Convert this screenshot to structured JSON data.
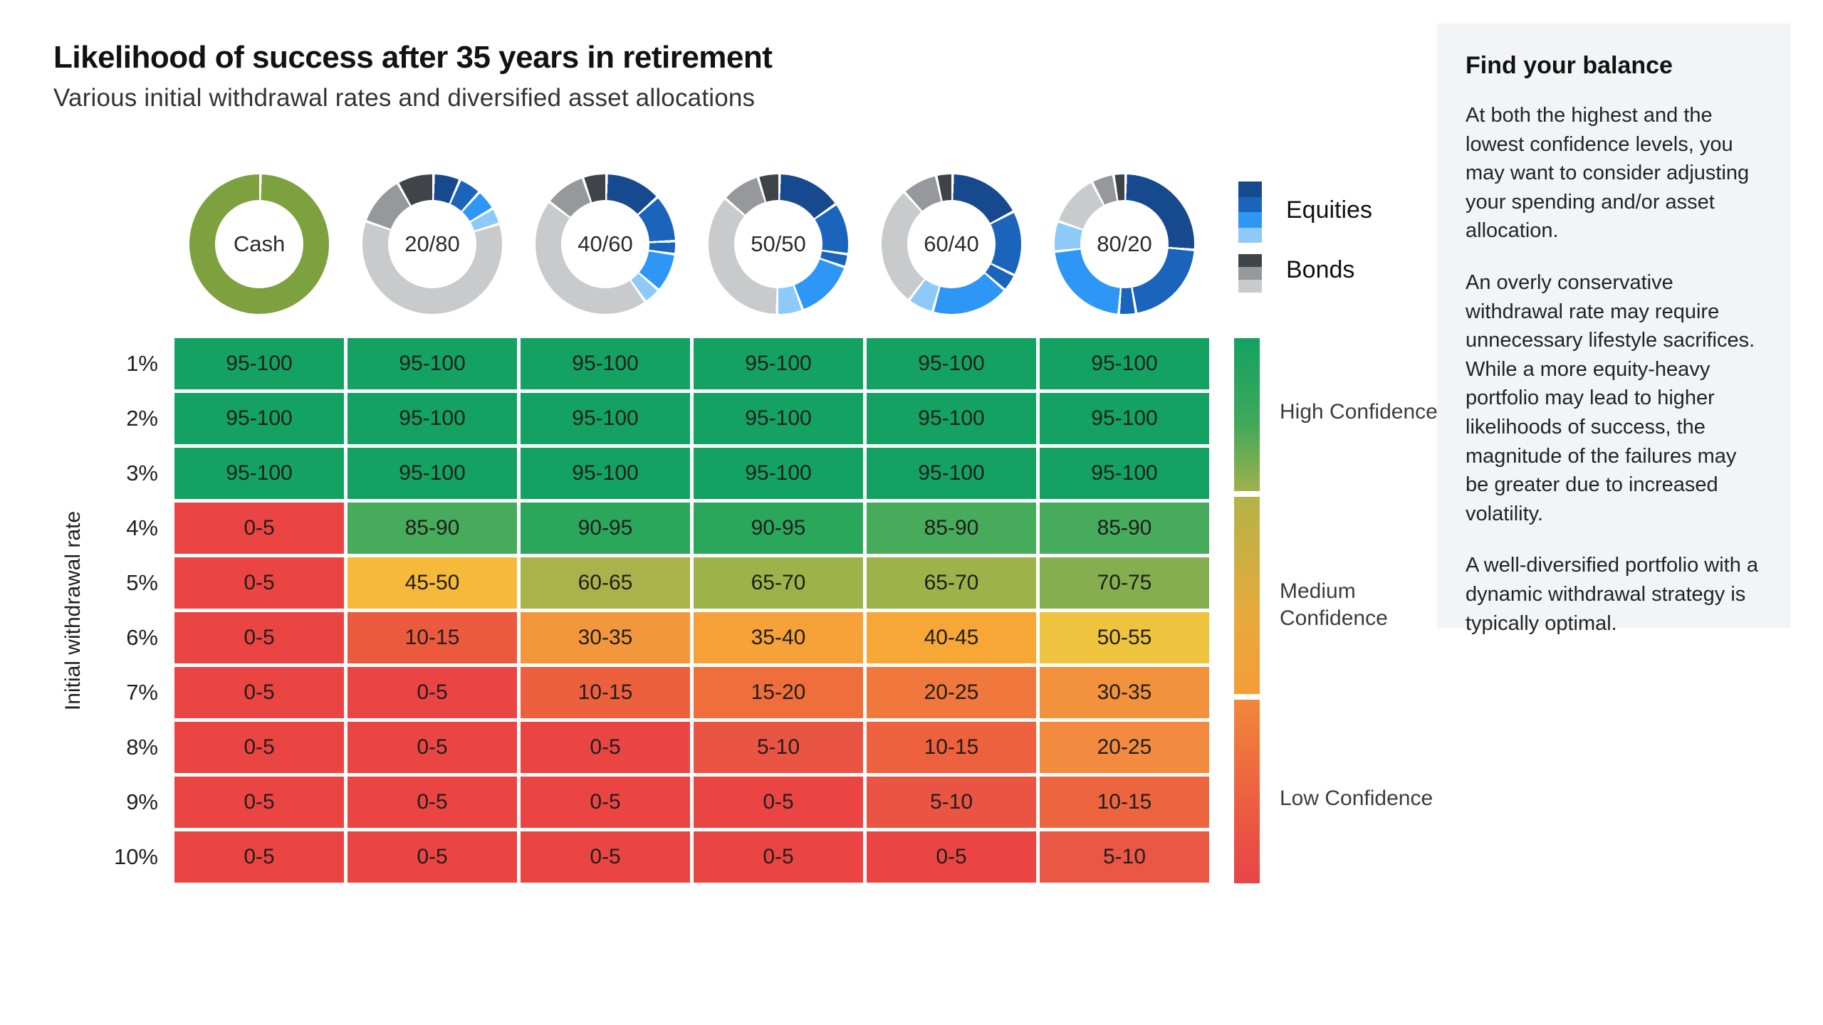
{
  "header": {
    "title": "Likelihood of success after 35 years in retirement",
    "subtitle": "Various initial withdrawal rates and diversified asset allocations"
  },
  "legend": {
    "equities_label": "Equities",
    "bonds_label": "Bonds",
    "equity_colors": [
      "#17498F",
      "#1B64BB",
      "#2E96F5",
      "#8DC9F9"
    ],
    "bond_colors": [
      "#404348",
      "#96989B",
      "#C9CACC"
    ]
  },
  "donuts": [
    {
      "label": "Cash",
      "segments": [
        {
          "color": "#7CA13E",
          "value": 1.0
        }
      ]
    },
    {
      "label": "20/80",
      "segments": [
        {
          "color": "#17498F",
          "value": 0.062
        },
        {
          "color": "#1B64BB",
          "value": 0.052
        },
        {
          "color": "#2E96F5",
          "value": 0.048
        },
        {
          "color": "#8DC9F9",
          "value": 0.038
        },
        {
          "color": "#C9CACC",
          "value": 0.6
        },
        {
          "color": "#96989B",
          "value": 0.115
        },
        {
          "color": "#404348",
          "value": 0.085
        }
      ]
    },
    {
      "label": "40/60",
      "segments": [
        {
          "color": "#17498F",
          "value": 0.13
        },
        {
          "color": "#1B64BB",
          "value": 0.11
        },
        {
          "color": "#1B64BB",
          "value": 0.03
        },
        {
          "color": "#2E96F5",
          "value": 0.09
        },
        {
          "color": "#8DC9F9",
          "value": 0.04
        },
        {
          "color": "#C9CACC",
          "value": 0.45
        },
        {
          "color": "#96989B",
          "value": 0.095
        },
        {
          "color": "#404348",
          "value": 0.055
        }
      ]
    },
    {
      "label": "50/50",
      "segments": [
        {
          "color": "#17498F",
          "value": 0.15
        },
        {
          "color": "#1B64BB",
          "value": 0.12
        },
        {
          "color": "#1B64BB",
          "value": 0.03
        },
        {
          "color": "#2E96F5",
          "value": 0.14
        },
        {
          "color": "#8DC9F9",
          "value": 0.06
        },
        {
          "color": "#C9CACC",
          "value": 0.36
        },
        {
          "color": "#96989B",
          "value": 0.09
        },
        {
          "color": "#404348",
          "value": 0.05
        }
      ]
    },
    {
      "label": "60/40",
      "segments": [
        {
          "color": "#17498F",
          "value": 0.17
        },
        {
          "color": "#1B64BB",
          "value": 0.15
        },
        {
          "color": "#1B64BB",
          "value": 0.04
        },
        {
          "color": "#2E96F5",
          "value": 0.18
        },
        {
          "color": "#8DC9F9",
          "value": 0.06
        },
        {
          "color": "#C9CACC",
          "value": 0.28
        },
        {
          "color": "#96989B",
          "value": 0.082
        },
        {
          "color": "#404348",
          "value": 0.038
        }
      ]
    },
    {
      "label": "80/20",
      "segments": [
        {
          "color": "#17498F",
          "value": 0.26
        },
        {
          "color": "#1B64BB",
          "value": 0.21
        },
        {
          "color": "#1B64BB",
          "value": 0.04
        },
        {
          "color": "#2E96F5",
          "value": 0.22
        },
        {
          "color": "#8DC9F9",
          "value": 0.07
        },
        {
          "color": "#C9CACC",
          "value": 0.12
        },
        {
          "color": "#96989B",
          "value": 0.052
        },
        {
          "color": "#404348",
          "value": 0.028
        }
      ]
    }
  ],
  "confidence": [
    {
      "label": "High Confidence"
    },
    {
      "label": "Medium Confidence"
    },
    {
      "label": "Low Confidence"
    }
  ],
  "chart_data": {
    "type": "heatmap",
    "title": "Likelihood of success after 35 years in retirement",
    "subtitle": "Various initial withdrawal rates and diversified asset allocations",
    "columns": [
      "Cash",
      "20/80",
      "40/60",
      "50/50",
      "60/40",
      "80/20"
    ],
    "ylabel": "Initial withdrawal rate",
    "legend_entries": [
      "Equities",
      "Bonds"
    ],
    "confidence_scale": [
      "High Confidence",
      "Medium Confidence",
      "Low Confidence"
    ],
    "donut_allocations": [
      {
        "label": "Cash",
        "equities_pct": 0,
        "bonds_pct": 0,
        "cash_pct": 100
      },
      {
        "label": "20/80",
        "equities_pct": 20,
        "bonds_pct": 80
      },
      {
        "label": "40/60",
        "equities_pct": 40,
        "bonds_pct": 60
      },
      {
        "label": "50/50",
        "equities_pct": 50,
        "bonds_pct": 50
      },
      {
        "label": "60/40",
        "equities_pct": 60,
        "bonds_pct": 40
      },
      {
        "label": "80/20",
        "equities_pct": 80,
        "bonds_pct": 20
      }
    ],
    "rows": [
      {
        "label": "1%",
        "cells": [
          {
            "value": "95-100",
            "color": "#13A261"
          },
          {
            "value": "95-100",
            "color": "#13A261"
          },
          {
            "value": "95-100",
            "color": "#13A261"
          },
          {
            "value": "95-100",
            "color": "#13A261"
          },
          {
            "value": "95-100",
            "color": "#13A261"
          },
          {
            "value": "95-100",
            "color": "#13A261"
          }
        ]
      },
      {
        "label": "2%",
        "cells": [
          {
            "value": "95-100",
            "color": "#13A261"
          },
          {
            "value": "95-100",
            "color": "#13A261"
          },
          {
            "value": "95-100",
            "color": "#13A261"
          },
          {
            "value": "95-100",
            "color": "#13A261"
          },
          {
            "value": "95-100",
            "color": "#13A261"
          },
          {
            "value": "95-100",
            "color": "#13A261"
          }
        ]
      },
      {
        "label": "3%",
        "cells": [
          {
            "value": "95-100",
            "color": "#13A261"
          },
          {
            "value": "95-100",
            "color": "#13A261"
          },
          {
            "value": "95-100",
            "color": "#13A261"
          },
          {
            "value": "95-100",
            "color": "#13A261"
          },
          {
            "value": "95-100",
            "color": "#13A261"
          },
          {
            "value": "95-100",
            "color": "#13A261"
          }
        ]
      },
      {
        "label": "4%",
        "cells": [
          {
            "value": "0-5",
            "color": "#EB4543"
          },
          {
            "value": "85-90",
            "color": "#46AB5B"
          },
          {
            "value": "90-95",
            "color": "#2BA75C"
          },
          {
            "value": "90-95",
            "color": "#2BA75C"
          },
          {
            "value": "85-90",
            "color": "#46AB5B"
          },
          {
            "value": "85-90",
            "color": "#46AB5B"
          }
        ]
      },
      {
        "label": "5%",
        "cells": [
          {
            "value": "0-5",
            "color": "#EB4543"
          },
          {
            "value": "45-50",
            "color": "#F6B93A"
          },
          {
            "value": "60-65",
            "color": "#A9B24B"
          },
          {
            "value": "65-70",
            "color": "#9DB349"
          },
          {
            "value": "65-70",
            "color": "#9DB349"
          },
          {
            "value": "70-75",
            "color": "#85AE4E"
          }
        ]
      },
      {
        "label": "6%",
        "cells": [
          {
            "value": "0-5",
            "color": "#EB4543"
          },
          {
            "value": "10-15",
            "color": "#EC5A3E"
          },
          {
            "value": "30-35",
            "color": "#F3973C"
          },
          {
            "value": "35-40",
            "color": "#F6A238"
          },
          {
            "value": "40-45",
            "color": "#F6A736"
          },
          {
            "value": "50-55",
            "color": "#EEC33D"
          }
        ]
      },
      {
        "label": "7%",
        "cells": [
          {
            "value": "0-5",
            "color": "#EB4543"
          },
          {
            "value": "0-5",
            "color": "#EB4543"
          },
          {
            "value": "10-15",
            "color": "#ED603E"
          },
          {
            "value": "15-20",
            "color": "#F06E3B"
          },
          {
            "value": "20-25",
            "color": "#F1783C"
          },
          {
            "value": "30-35",
            "color": "#F3923C"
          }
        ]
      },
      {
        "label": "8%",
        "cells": [
          {
            "value": "0-5",
            "color": "#EB4543"
          },
          {
            "value": "0-5",
            "color": "#EB4543"
          },
          {
            "value": "0-5",
            "color": "#EB4543"
          },
          {
            "value": "5-10",
            "color": "#EA5442"
          },
          {
            "value": "10-15",
            "color": "#ED613F"
          },
          {
            "value": "20-25",
            "color": "#F28B40"
          }
        ]
      },
      {
        "label": "9%",
        "cells": [
          {
            "value": "0-5",
            "color": "#EB4543"
          },
          {
            "value": "0-5",
            "color": "#EB4543"
          },
          {
            "value": "0-5",
            "color": "#EB4543"
          },
          {
            "value": "0-5",
            "color": "#EB4543"
          },
          {
            "value": "5-10",
            "color": "#EA5442"
          },
          {
            "value": "10-15",
            "color": "#ED653F"
          }
        ]
      },
      {
        "label": "10%",
        "cells": [
          {
            "value": "0-5",
            "color": "#EB4543"
          },
          {
            "value": "0-5",
            "color": "#EB4543"
          },
          {
            "value": "0-5",
            "color": "#EB4543"
          },
          {
            "value": "0-5",
            "color": "#EB4543"
          },
          {
            "value": "0-5",
            "color": "#EB4543"
          },
          {
            "value": "5-10",
            "color": "#EA5744"
          }
        ]
      }
    ]
  },
  "panel": {
    "title": "Find your balance",
    "paragraphs": [
      "At both the highest and the lowest confidence levels, you may want to consider adjusting your spending and/or asset allocation.",
      "An overly conservative withdrawal rate may require unnecessary lifestyle sacrifices. While a more equity-heavy portfolio may lead to higher likelihoods of success, the magnitude of the failures may be greater due to increased volatility.",
      "A well-diversified portfolio with a dynamic withdrawal strategy is typically optimal."
    ]
  }
}
